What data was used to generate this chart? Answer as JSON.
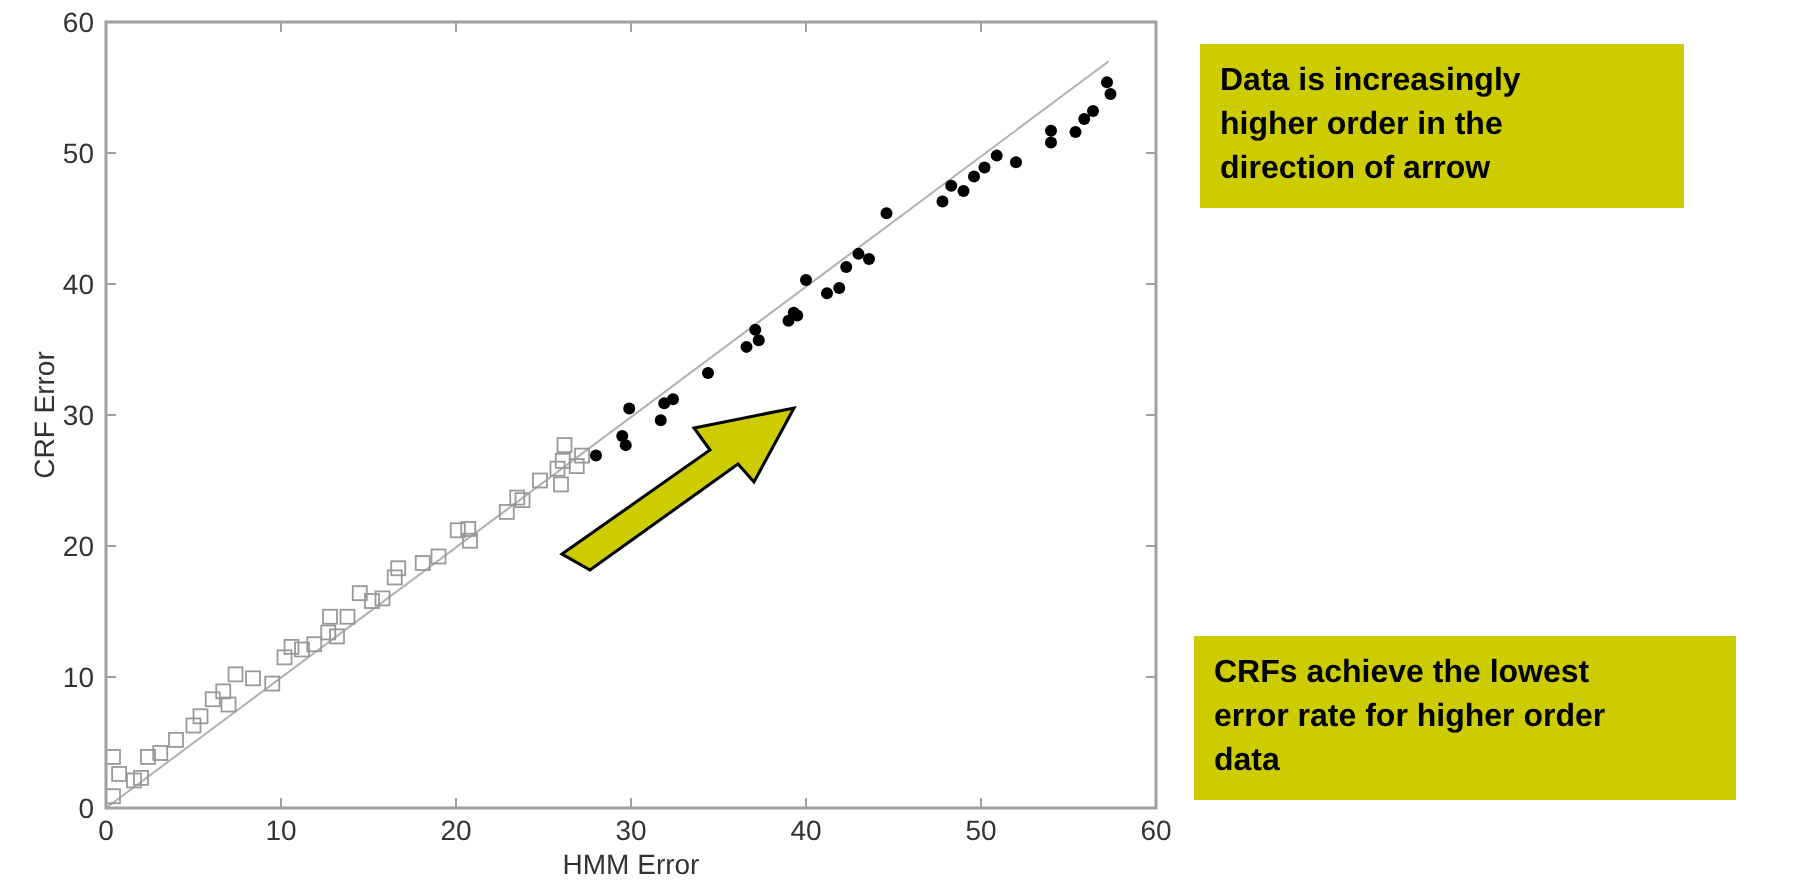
{
  "chart_data": {
    "type": "scatter",
    "xlabel": "HMM Error",
    "ylabel": "CRF Error",
    "xlim": [
      0,
      60
    ],
    "ylim": [
      0,
      60
    ],
    "xticks": [
      0,
      10,
      20,
      30,
      40,
      50,
      60
    ],
    "yticks": [
      0,
      10,
      20,
      30,
      40,
      50,
      60
    ],
    "grid": false,
    "annotations": [
      "Data is increasingly higher order in the direction of arrow",
      "CRFs achieve the lowest error rate for higher order data"
    ],
    "series": [
      {
        "type": "line",
        "color": "#b0b0b0",
        "x": [
          0,
          57.3
        ],
        "values": [
          0,
          57
        ]
      },
      {
        "marker": "square",
        "color": "#999999",
        "x": [
          0.4,
          0.4,
          0.75,
          1.6,
          2.0,
          2.4,
          3.1,
          4.0,
          5.0,
          5.4,
          6.1,
          6.7,
          7.0,
          7.4,
          8.4,
          9.5,
          10.2,
          10.6,
          11.2,
          11.9,
          12.7,
          12.8,
          13.2,
          13.8,
          14.5,
          15.2,
          15.8,
          16.5,
          16.7,
          18.1,
          19.0,
          20.1,
          20.7,
          20.8,
          22.9,
          23.5,
          23.8,
          24.8,
          25.8,
          26.0,
          26.1,
          26.2,
          27.2,
          26.9
        ],
        "values": [
          0.9,
          3.9,
          2.6,
          2.1,
          2.3,
          3.9,
          4.2,
          5.2,
          6.3,
          7.0,
          8.3,
          8.9,
          7.9,
          10.2,
          9.9,
          9.5,
          11.5,
          12.3,
          12.1,
          12.5,
          13.4,
          14.6,
          13.1,
          14.6,
          16.4,
          15.8,
          16.0,
          17.6,
          18.3,
          18.7,
          19.2,
          21.2,
          21.3,
          20.4,
          22.6,
          23.7,
          23.5,
          25.0,
          25.9,
          24.7,
          26.5,
          27.7,
          26.9,
          26.1
        ]
      },
      {
        "marker": "circle",
        "color": "#000000",
        "x": [
          28.0,
          29.5,
          29.7,
          29.9,
          31.7,
          31.9,
          32.4,
          34.4,
          36.6,
          37.1,
          37.3,
          39.0,
          39.3,
          39.5,
          40.0,
          41.2,
          41.9,
          42.3,
          43.0,
          43.6,
          44.6,
          47.8,
          48.3,
          49.0,
          49.6,
          50.2,
          50.9,
          52.0,
          54.0,
          54.0,
          55.4,
          55.9,
          56.4,
          57.2,
          57.4
        ],
        "values": [
          26.9,
          28.4,
          27.7,
          30.5,
          29.6,
          30.9,
          31.2,
          33.2,
          35.2,
          36.5,
          35.7,
          37.2,
          37.8,
          37.6,
          40.3,
          39.3,
          39.7,
          41.3,
          42.3,
          41.9,
          45.4,
          46.3,
          47.5,
          47.1,
          48.2,
          48.9,
          49.8,
          49.3,
          51.7,
          50.8,
          51.6,
          52.6,
          53.2,
          55.4,
          54.5
        ]
      }
    ]
  }
}
